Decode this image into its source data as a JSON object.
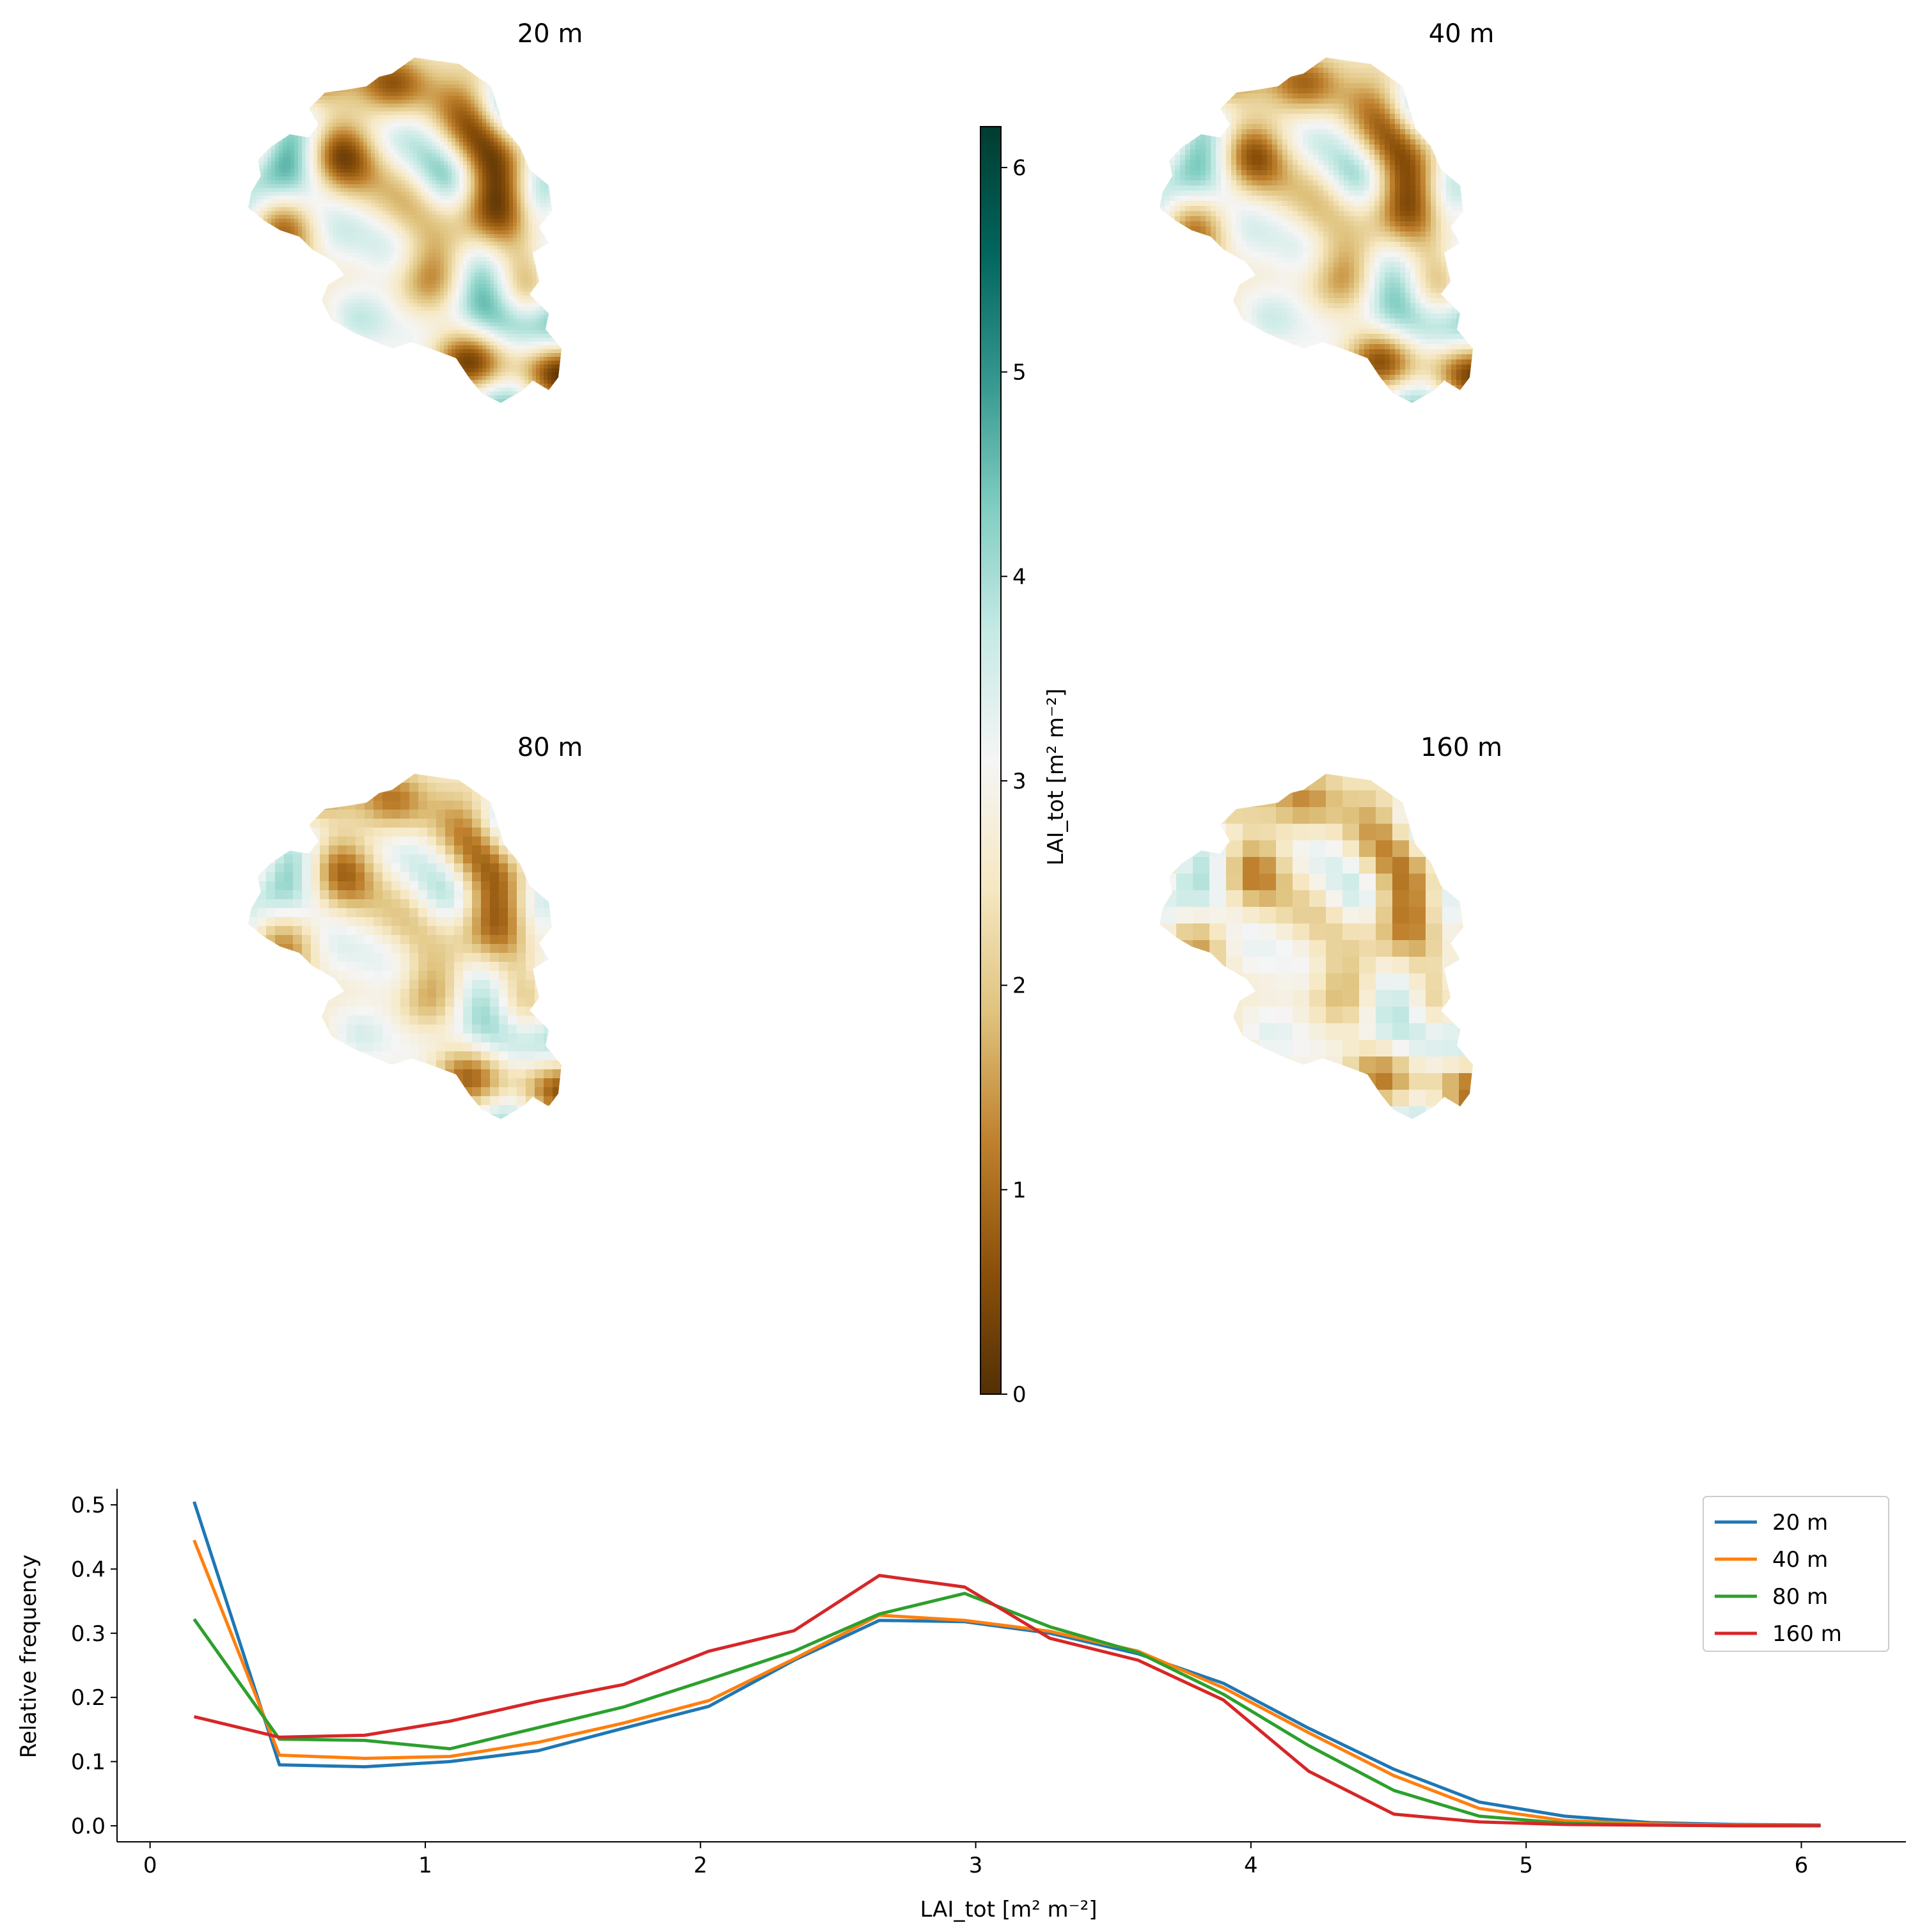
{
  "panels": [
    {
      "title": "20 m"
    },
    {
      "title": "40 m"
    },
    {
      "title": "80 m"
    },
    {
      "title": "160 m"
    }
  ],
  "colorbar": {
    "label": "LAI_tot [m² m⁻²]",
    "min": 0,
    "max": 6.2,
    "ticks": [
      "0",
      "1",
      "2",
      "3",
      "4",
      "5",
      "6"
    ],
    "colormap": "BrBG",
    "stops": [
      "#543005",
      "#8c510a",
      "#bf812d",
      "#dfc27d",
      "#f6e8c3",
      "#f5f5f5",
      "#c7eae5",
      "#80cdc1",
      "#35978f",
      "#01665e",
      "#003c30"
    ]
  },
  "chart_data": {
    "type": "line",
    "xlabel": "LAI_tot [m² m⁻²]",
    "ylabel": "Relative frequency",
    "xlim": [
      -0.12,
      6.38
    ],
    "ylim": [
      -0.025,
      0.525
    ],
    "xticks": [
      "0",
      "1",
      "2",
      "3",
      "4",
      "5",
      "6"
    ],
    "yticks": [
      "0.0",
      "0.1",
      "0.2",
      "0.3",
      "0.4",
      "0.5"
    ],
    "legend_position": "top-right",
    "x": [
      0.16,
      0.47,
      0.78,
      1.09,
      1.41,
      1.72,
      2.03,
      2.34,
      2.65,
      2.96,
      3.27,
      3.59,
      3.9,
      4.21,
      4.52,
      4.83,
      5.14,
      5.45,
      5.76,
      6.07
    ],
    "series": [
      {
        "name": "20 m",
        "color": "#1f77b4",
        "values": [
          0.505,
          0.095,
          0.092,
          0.1,
          0.117,
          0.152,
          0.186,
          0.258,
          0.32,
          0.318,
          0.3,
          0.268,
          0.222,
          0.152,
          0.088,
          0.037,
          0.015,
          0.005,
          0.002,
          0.001
        ]
      },
      {
        "name": "40 m",
        "color": "#ff7f0e",
        "values": [
          0.445,
          0.11,
          0.105,
          0.108,
          0.13,
          0.16,
          0.195,
          0.26,
          0.328,
          0.32,
          0.303,
          0.272,
          0.215,
          0.145,
          0.078,
          0.027,
          0.008,
          0.003,
          0.001,
          0.0
        ]
      },
      {
        "name": "80 m",
        "color": "#2ca02c",
        "values": [
          0.322,
          0.135,
          0.133,
          0.12,
          0.153,
          0.185,
          0.228,
          0.272,
          0.33,
          0.362,
          0.31,
          0.27,
          0.205,
          0.125,
          0.055,
          0.015,
          0.004,
          0.001,
          0.0,
          0.0
        ]
      },
      {
        "name": "160 m",
        "color": "#d62728",
        "values": [
          0.17,
          0.138,
          0.141,
          0.163,
          0.194,
          0.22,
          0.272,
          0.304,
          0.39,
          0.372,
          0.292,
          0.258,
          0.196,
          0.085,
          0.018,
          0.006,
          0.002,
          0.001,
          0.0,
          0.0
        ]
      }
    ]
  }
}
